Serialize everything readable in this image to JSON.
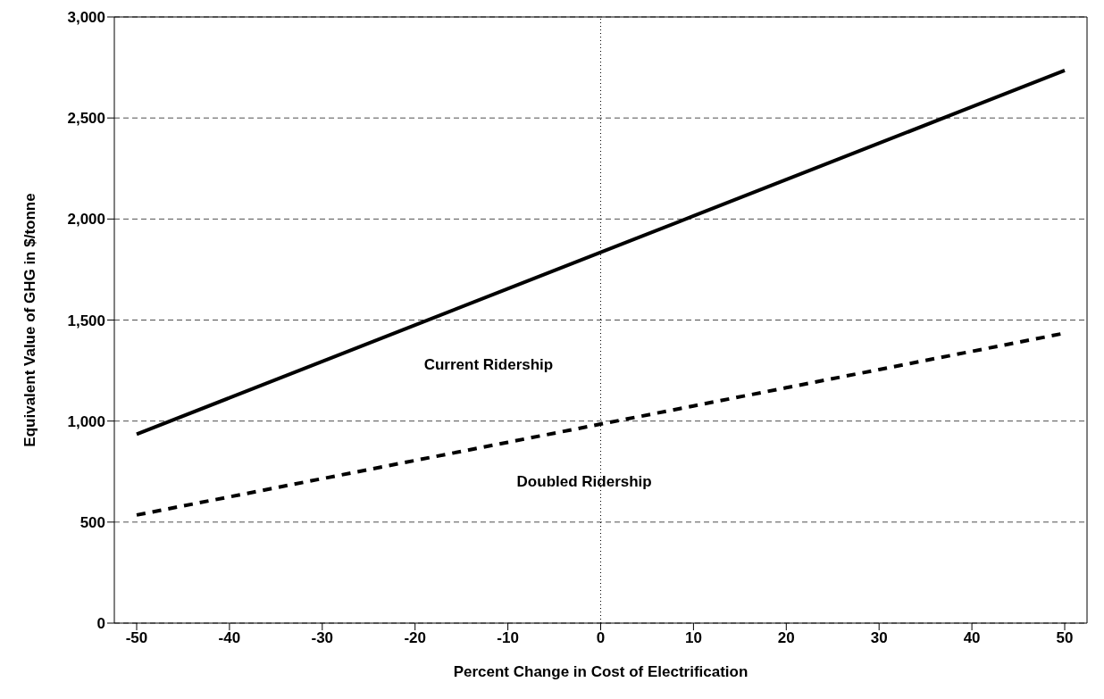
{
  "chart_data": {
    "type": "line",
    "xlabel": "Percent Change in Cost of Electrification",
    "ylabel": "Equivalent Value of GHG in $/tonne",
    "categories": [
      "-50",
      "-40",
      "-30",
      "-20",
      "-10",
      "0",
      "10",
      "20",
      "30",
      "40",
      "50"
    ],
    "series": [
      {
        "name": "Current Ridership",
        "color": "#000000",
        "line_style": "solid",
        "values": [
          935,
          1115,
          1295,
          1475,
          1655,
          1835,
          2015,
          2195,
          2375,
          2555,
          2735
        ]
      },
      {
        "name": "Doubled Ridership",
        "color": "#000000",
        "line_style": "dashed",
        "values": [
          535,
          625,
          715,
          805,
          895,
          985,
          1075,
          1165,
          1255,
          1345,
          1435
        ]
      }
    ],
    "ylim": [
      0,
      3000
    ],
    "yticks": [
      0,
      {
        "value": 500,
        "label": "500"
      },
      {
        "value": 1000,
        "label": "1,000"
      },
      {
        "value": 1500,
        "label": "1,500"
      },
      {
        "value": 2000,
        "label": "2,000"
      },
      {
        "value": 2500,
        "label": "2,500"
      },
      {
        "value": 3000,
        "label": "3,000"
      }
    ],
    "ref_lines": [
      {
        "axis": "x",
        "value": "0",
        "line_style": "dotted"
      }
    ],
    "grid": "y",
    "marker": "none"
  }
}
